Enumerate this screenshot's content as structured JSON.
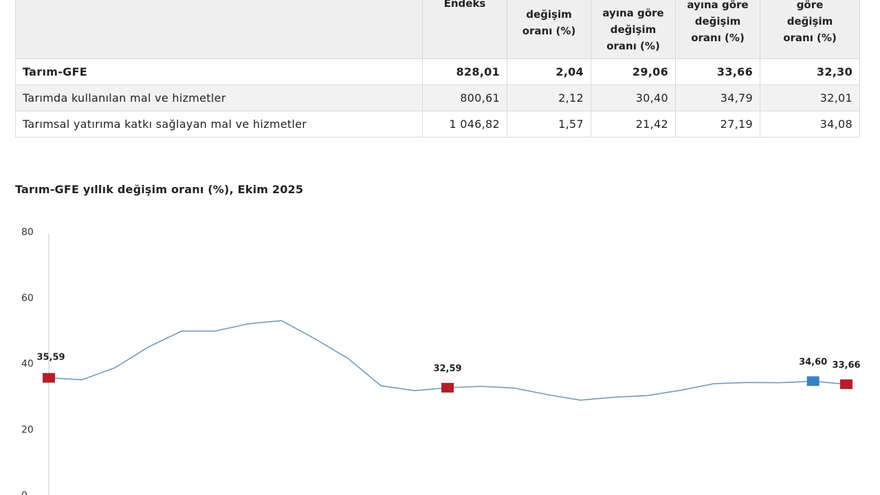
{
  "table": {
    "headers": [
      "",
      "Endeks",
      "değişim\noranı (%)",
      "ayına göre\ndeğişim\noranı (%)",
      "ayına göre\ndeğişim\noranı (%)",
      "göre\ndeğişim\noranı (%)"
    ],
    "rows": [
      {
        "label": "Tarım-GFE",
        "values": [
          "828,01",
          "2,04",
          "29,06",
          "33,66",
          "32,30"
        ]
      },
      {
        "label": "Tarımda kullanılan mal ve hizmetler",
        "values": [
          "800,61",
          "2,12",
          "30,40",
          "34,79",
          "32,01"
        ]
      },
      {
        "label": "Tarımsal yatırıma katkı sağlayan mal ve hizmetler",
        "values": [
          "1 046,82",
          "1,57",
          "21,42",
          "27,19",
          "34,08"
        ]
      }
    ]
  },
  "chart_title": "Tarım-GFE yıllık değişim oranı (%), Ekim 2025",
  "chart_data": {
    "type": "line",
    "title": "Tarım-GFE yıllık değişim oranı (%), Ekim 2025",
    "xlabel": "",
    "ylabel": "",
    "ylim": [
      0,
      80
    ],
    "yticks": [
      "0",
      "20",
      "40",
      "60",
      "80"
    ],
    "grid": false,
    "series": [
      {
        "values": [
          35.59,
          35.0,
          38.7,
          45.0,
          49.8,
          49.8,
          52.0,
          53.0,
          47.5,
          41.5,
          33.2,
          31.7,
          32.59,
          33.0,
          32.5,
          30.5,
          28.8,
          29.7,
          30.2,
          31.8,
          33.8,
          34.2,
          34.1,
          34.6,
          33.66
        ],
        "color": "#6f9bc0"
      }
    ],
    "highlighted_points": [
      {
        "index": 0,
        "label": "35,59",
        "color": "#b2202a"
      },
      {
        "index": 12,
        "label": "32,59",
        "color": "#b2202a"
      },
      {
        "index": 23,
        "label": "34,60",
        "color": "#3b7fc0"
      },
      {
        "index": 24,
        "label": "33,66",
        "color": "#b2202a"
      }
    ]
  }
}
